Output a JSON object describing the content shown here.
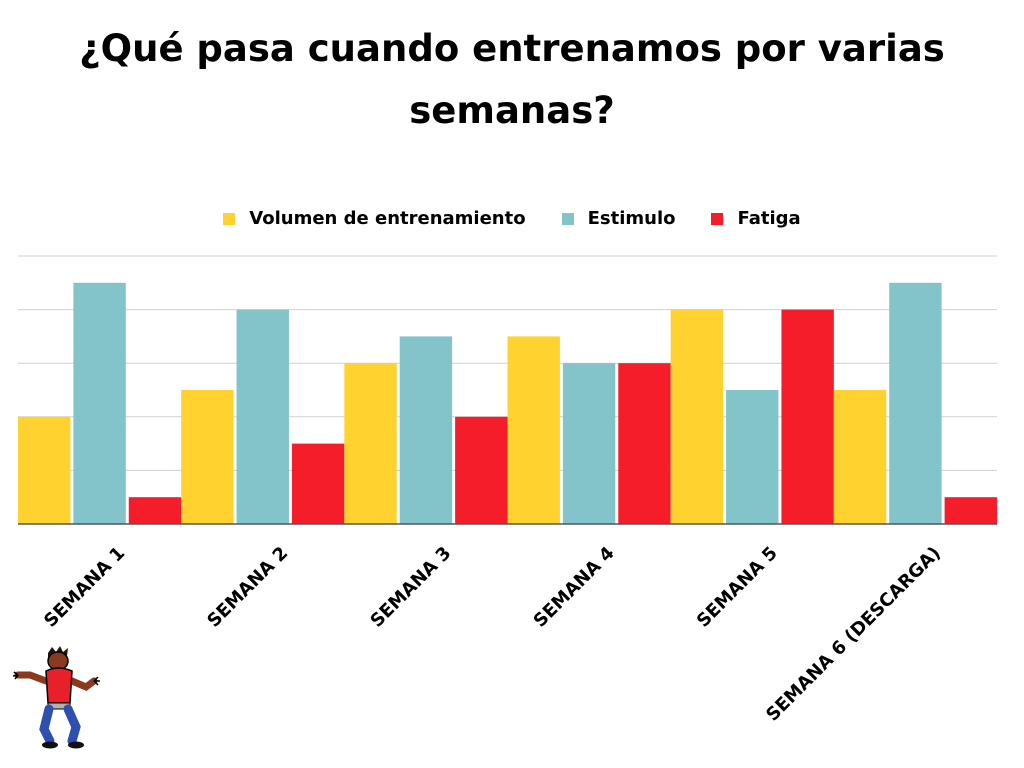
{
  "title": {
    "line1": "¿Qué pasa cuando entrenamos por varias",
    "line2": "semanas?"
  },
  "chart_data": {
    "type": "bar",
    "categories": [
      "SEMANA 1",
      "SEMANA 2",
      "SEMANA 3",
      "SEMANA 4",
      "SEMANA 5",
      "SEMANA 6 (DESCARGA)"
    ],
    "series": [
      {
        "name": "Volumen de entrenamiento",
        "color": "#FFD230",
        "values": [
          4,
          5,
          6,
          7,
          8,
          5
        ]
      },
      {
        "name": "Estimulo",
        "color": "#83C3CA",
        "values": [
          9,
          8,
          7,
          6,
          5,
          9
        ]
      },
      {
        "name": "Fatiga",
        "color": "#F51D2A",
        "values": [
          1,
          3,
          4,
          6,
          8,
          1
        ]
      }
    ],
    "ylim": [
      0,
      10
    ],
    "grid": true,
    "y_tick_labels": false,
    "legend": "top-center"
  }
}
